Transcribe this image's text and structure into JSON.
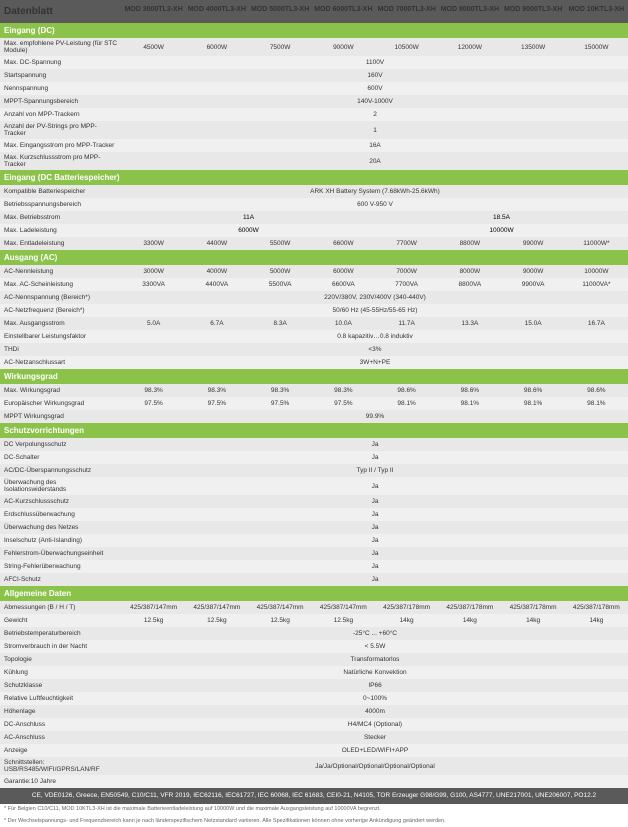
{
  "title": "Datenblatt",
  "models": [
    "MOD 3000TL3-XH",
    "MOD 4000TL3-XH",
    "MOD 5000TL3-XH",
    "MOD 6000TL3-XH",
    "MOD 7000TL3-XH",
    "MOD 8000TL3-XH",
    "MOD 9000TL3-XH",
    "MOD 10KTL3-XH"
  ],
  "sections": [
    {
      "header": "Eingang (DC)",
      "rows": [
        {
          "label": "Max. empfohlene PV-Leistung (für STC Module)",
          "values": [
            "4500W",
            "6000W",
            "7500W",
            "9000W",
            "10500W",
            "12000W",
            "13500W",
            "15000W"
          ]
        },
        {
          "label": "Max. DC-Spannung",
          "span": "1100V"
        },
        {
          "label": "Startspannung",
          "span": "160V"
        },
        {
          "label": "Nennspannung",
          "span": "600V"
        },
        {
          "label": "MPPT-Spannungsbereich",
          "span": "140V-1000V"
        },
        {
          "label": "Anzahl von MPP-Trackern",
          "span": "2"
        },
        {
          "label": "Anzahl der PV-Strings pro MPP-Tracker",
          "span": "1"
        },
        {
          "label": "Max. Eingangsstrom pro MPP-Tracker",
          "span": "16A"
        },
        {
          "label": "Max. Kurzschlussstrom pro MPP-Tracker",
          "span": "20A"
        }
      ]
    },
    {
      "header": "Eingang (DC Batteriespeicher)",
      "rows": [
        {
          "label": "Kompatible Batteriespeicher",
          "span": "ARK XH Battery System (7.68kWh-25.6kWh)"
        },
        {
          "label": "Betriebsspannungsbereich",
          "span": "600 V-950 V"
        },
        {
          "label": "Max. Betriebsstrom",
          "halves": [
            "11A",
            "18.5A"
          ]
        },
        {
          "label": "Max. Ladeleistung",
          "halves": [
            "6000W",
            "10000W"
          ]
        },
        {
          "label": "Max. Entladeleistung",
          "values": [
            "3300W",
            "4400W",
            "5500W",
            "6600W",
            "7700W",
            "8800W",
            "9900W",
            "11000W*"
          ]
        }
      ]
    },
    {
      "header": "Ausgang (AC)",
      "rows": [
        {
          "label": "AC-Nennleistung",
          "values": [
            "3000W",
            "4000W",
            "5000W",
            "6000W",
            "7000W",
            "8000W",
            "9000W",
            "10000W"
          ]
        },
        {
          "label": "Max. AC-Scheinleistung",
          "values": [
            "3300VA",
            "4400VA",
            "5500VA",
            "6600VA",
            "7700VA",
            "8800VA",
            "9900VA",
            "11000VA*"
          ]
        },
        {
          "label": "AC-Nennspannung (Bereich*)",
          "span": "220V/380V, 230V/400V (340-440V)"
        },
        {
          "label": "AC-Netzfrequenz (Bereich*)",
          "span": "50/60 Hz (45-55Hz/55-65 Hz)"
        },
        {
          "label": "Max. Ausgangsstrom",
          "values": [
            "5.0A",
            "6.7A",
            "8.3A",
            "10.0A",
            "11.7A",
            "13.3A",
            "15.0A",
            "16.7A"
          ]
        },
        {
          "label": "Einstellbarer Leistungsfaktor",
          "span": "0.8 kapazitiv…0.8 induktiv"
        },
        {
          "label": "THDi",
          "span": "<3%"
        },
        {
          "label": "AC-Netzanschlussart",
          "span": "3W+N+PE"
        }
      ]
    },
    {
      "header": "Wirkungsgrad",
      "rows": [
        {
          "label": "Max. Wirkungsgrad",
          "values": [
            "98.3%",
            "98.3%",
            "98.3%",
            "98.3%",
            "98.6%",
            "98.6%",
            "98.6%",
            "98.6%"
          ]
        },
        {
          "label": "Europäischer Wirkungsgrad",
          "values": [
            "97.5%",
            "97.5%",
            "97.5%",
            "97.5%",
            "98.1%",
            "98.1%",
            "98.1%",
            "98.1%"
          ]
        },
        {
          "label": "MPPT Wirkungsgrad",
          "span": "99.9%"
        }
      ]
    },
    {
      "header": "Schutzvorrichtungen",
      "rows": [
        {
          "label": "DC Verpolungsschutz",
          "span": "Ja"
        },
        {
          "label": "DC-Schalter",
          "span": "Ja"
        },
        {
          "label": "AC/DC-Überspannungsschutz",
          "span": "Typ II / Typ II"
        },
        {
          "label": "Überwachung des Isolationswiderstands",
          "span": "Ja"
        },
        {
          "label": "AC-Kurzschlussschutz",
          "span": "Ja"
        },
        {
          "label": "Erdschlussüberwachung",
          "span": "Ja"
        },
        {
          "label": "Überwachung des Netzes",
          "span": "Ja"
        },
        {
          "label": "Inselschutz (Anti-Islanding)",
          "span": "Ja"
        },
        {
          "label": "Fehlerstrom-Überwachungseinheit",
          "span": "Ja"
        },
        {
          "label": "String-Fehlerüberwachung",
          "span": "Ja"
        },
        {
          "label": "AFCI-Schutz",
          "span": "Ja"
        }
      ]
    },
    {
      "header": "Allgemeine Daten",
      "rows": [
        {
          "label": "Abmessungen (B / H / T)",
          "values": [
            "425/387/147mm",
            "425/387/147mm",
            "425/387/147mm",
            "425/387/147mm",
            "425/387/178mm",
            "425/387/178mm",
            "425/387/178mm",
            "425/387/178mm"
          ]
        },
        {
          "label": "Gewicht",
          "values": [
            "12.5kg",
            "12.5kg",
            "12.5kg",
            "12.5kg",
            "14kg",
            "14kg",
            "14kg",
            "14kg"
          ]
        },
        {
          "label": "Betriebstemperaturbereich",
          "span": "-25°C ... +60°C"
        },
        {
          "label": "Stromverbrauch in der Nacht",
          "span": "< 5.5W"
        },
        {
          "label": "Topologie",
          "span": "Transformatorlos"
        },
        {
          "label": "Kühlung",
          "span": "Natürliche Konvektion"
        },
        {
          "label": "Schutzklasse",
          "span": "IP66"
        },
        {
          "label": "Relative Luftfeuchtigkeit",
          "span": "0~100%"
        },
        {
          "label": "Höhenlage",
          "span": "4000m"
        },
        {
          "label": "DC-Anschluss",
          "span": "H4/MC4 (Optional)"
        },
        {
          "label": "AC-Anschluss",
          "span": "Stecker"
        },
        {
          "label": "Anzeige",
          "span": "OLED+LED/WIFI+APP"
        },
        {
          "label": "Schnittstellen: USB/RS485/WIFI/GPRS/LAN/RF",
          "span": "Ja/Ja/Optional/Optional/Optional/Optional"
        },
        {
          "label": "Garantie:10 Jahre",
          "span": ""
        }
      ]
    }
  ],
  "cert": "CE, VDE0126, Greece, EN50549, C10/C11, VFR 2019, IEC62116, IEC61727, IEC 60068, IEC 61683, CEI0-21, N4105, TOR Erzeuger G98/G99, G100, AS4777, UNE217001, UNE206007, PO12.2",
  "footnotes": [
    "* Für Belgien C10/C11, MOD 10KTL3-XH ist die maximale Batterieentladeleistung auf 10000W und die maximale Ausgangsleistung auf 10000VA begrenzt.",
    "* Der Wechselspannungs- und Frequenzbereich kann je nach länderspezifischem Netzstandard variieren. Alle Spezifikationen können ohne vorherige Ankündigung geändert werden."
  ],
  "colors": {
    "section_header_bg": "#8bc34a",
    "header_bg": "#5a5a5a",
    "row_even": "#f0f0f0",
    "row_odd": "#e8e8e8"
  }
}
